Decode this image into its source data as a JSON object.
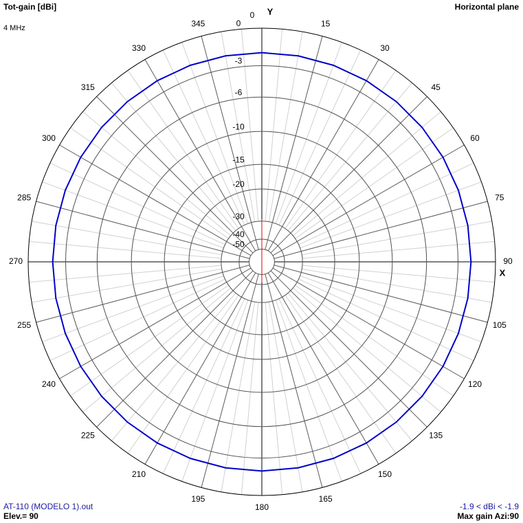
{
  "chart_data": {
    "type": "polar",
    "title": "Tot-gain [dBi]",
    "subtitle": "Horizontal plane",
    "frequency": "4 MHz",
    "y_axis_label": "Y",
    "x_axis_label": "X",
    "file": "AT-110 (MODELO 1).out",
    "elevation": "Elev.= 90",
    "gain_range": "-1.9 < dBi < -1.9",
    "max_gain": "Max gain Azi:90",
    "rscale": "arrl",
    "rlim": [
      -50,
      0
    ],
    "rticks": [
      0,
      -3,
      -6,
      -10,
      -15,
      -20,
      -30,
      -40,
      -50
    ],
    "angle_ticks": [
      0,
      15,
      30,
      45,
      60,
      75,
      90,
      105,
      120,
      135,
      150,
      165,
      180,
      195,
      210,
      225,
      240,
      255,
      270,
      285,
      300,
      315,
      330,
      345
    ],
    "series": [
      {
        "color": "#0000c8",
        "x": [
          0,
          10,
          20,
          30,
          40,
          50,
          60,
          70,
          80,
          90,
          100,
          110,
          120,
          130,
          140,
          150,
          160,
          170,
          180,
          190,
          200,
          210,
          220,
          230,
          240,
          250,
          260,
          270,
          280,
          290,
          300,
          310,
          320,
          330,
          340,
          350
        ],
        "values": [
          -1.9,
          -1.9,
          -1.9,
          -1.9,
          -1.9,
          -1.9,
          -1.9,
          -1.9,
          -1.9,
          -1.9,
          -1.9,
          -1.9,
          -1.9,
          -1.9,
          -1.9,
          -1.9,
          -1.9,
          -1.9,
          -1.9,
          -1.9,
          -1.9,
          -1.9,
          -1.9,
          -1.9,
          -1.9,
          -1.9,
          -1.9,
          -1.9,
          -1.9,
          -1.9,
          -1.9,
          -1.9,
          -1.9,
          -1.9,
          -1.9,
          -1.9
        ]
      }
    ]
  }
}
